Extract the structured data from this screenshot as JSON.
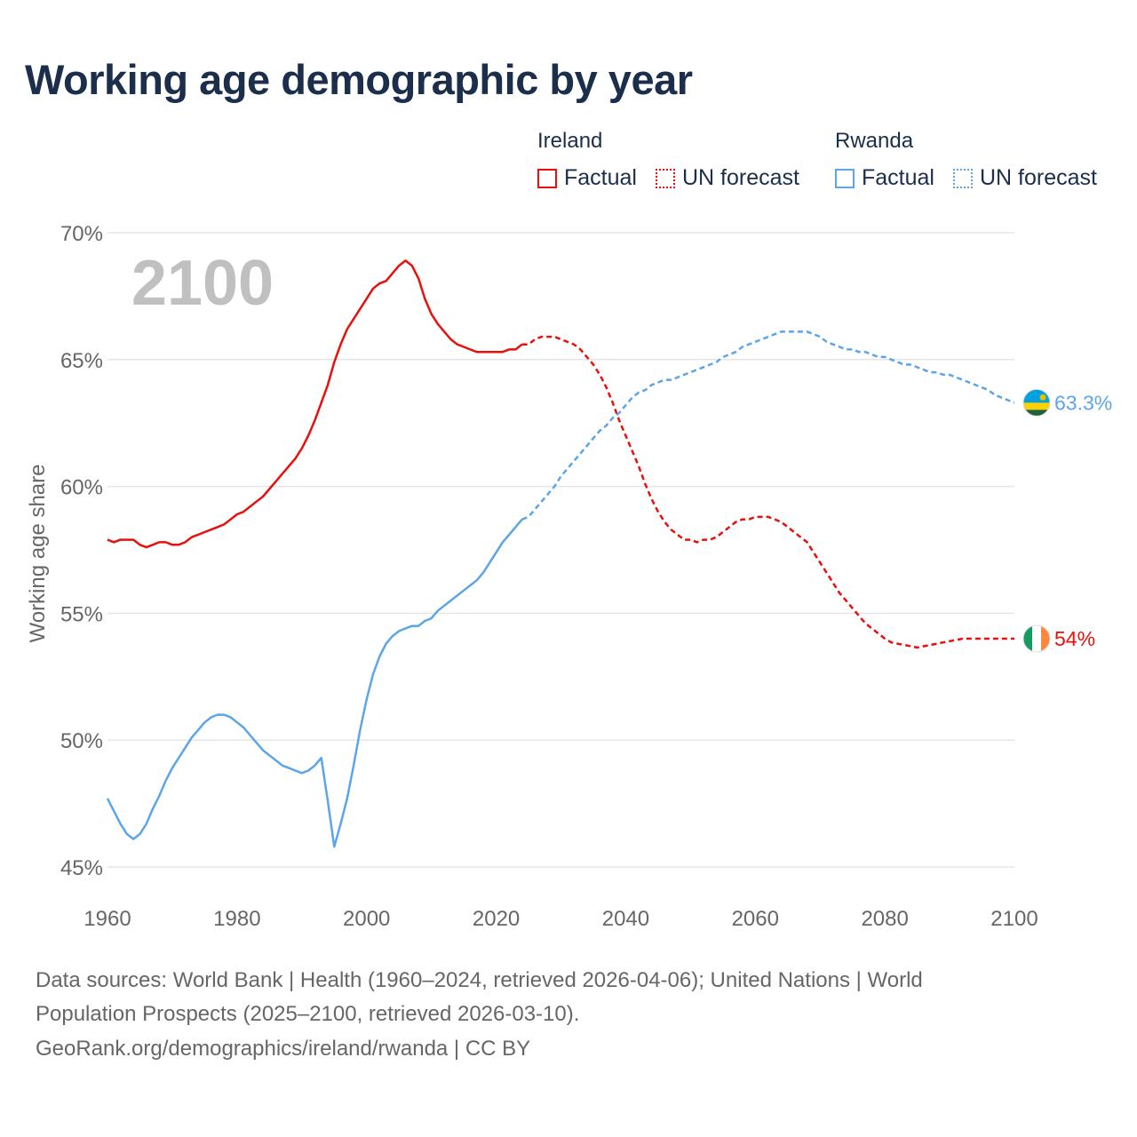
{
  "title": "Working age demographic by year",
  "legend": {
    "groups": [
      {
        "name": "Ireland",
        "color": "#e8100c",
        "items": [
          {
            "label": "Factual",
            "style": "solid"
          },
          {
            "label": "UN forecast",
            "style": "dotted"
          }
        ]
      },
      {
        "name": "Rwanda",
        "color": "#5ba5e8",
        "items": [
          {
            "label": "Factual",
            "style": "solid"
          },
          {
            "label": "UN forecast",
            "style": "dotted"
          }
        ]
      }
    ]
  },
  "footer": {
    "line1": "Data sources: World Bank | Health (1960–2024, retrieved 2026-04-06); United Nations | World",
    "line2": "Population Prospects (2025–2100, retrieved 2026-03-10).",
    "line3": "GeoRank.org/demographics/ireland/rwanda | CC BY"
  },
  "chart_data": {
    "type": "line",
    "year_label": "2100",
    "ylabel": "Working age share",
    "xlim": [
      1960,
      2100
    ],
    "ylim": [
      45,
      70
    ],
    "xticks": [
      1960,
      1980,
      2000,
      2020,
      2040,
      2060,
      2080,
      2100
    ],
    "yticks": [
      45,
      50,
      55,
      60,
      65,
      70
    ],
    "ytick_labels": [
      "45%",
      "50%",
      "55%",
      "60%",
      "65%",
      "70%"
    ],
    "forecast_start": 2024,
    "series": [
      {
        "name": "Ireland",
        "color": "#e8100c",
        "end_label": "54%",
        "flag": "ireland-flag",
        "points": [
          [
            1960,
            57.9
          ],
          [
            1961,
            57.8
          ],
          [
            1962,
            57.9
          ],
          [
            1963,
            57.9
          ],
          [
            1964,
            57.9
          ],
          [
            1965,
            57.7
          ],
          [
            1966,
            57.6
          ],
          [
            1967,
            57.7
          ],
          [
            1968,
            57.8
          ],
          [
            1969,
            57.8
          ],
          [
            1970,
            57.7
          ],
          [
            1971,
            57.7
          ],
          [
            1972,
            57.8
          ],
          [
            1973,
            58.0
          ],
          [
            1974,
            58.1
          ],
          [
            1975,
            58.2
          ],
          [
            1976,
            58.3
          ],
          [
            1977,
            58.4
          ],
          [
            1978,
            58.5
          ],
          [
            1979,
            58.7
          ],
          [
            1980,
            58.9
          ],
          [
            1981,
            59.0
          ],
          [
            1982,
            59.2
          ],
          [
            1983,
            59.4
          ],
          [
            1984,
            59.6
          ],
          [
            1985,
            59.9
          ],
          [
            1986,
            60.2
          ],
          [
            1987,
            60.5
          ],
          [
            1988,
            60.8
          ],
          [
            1989,
            61.1
          ],
          [
            1990,
            61.5
          ],
          [
            1991,
            62.0
          ],
          [
            1992,
            62.6
          ],
          [
            1993,
            63.3
          ],
          [
            1994,
            64.0
          ],
          [
            1995,
            64.9
          ],
          [
            1996,
            65.6
          ],
          [
            1997,
            66.2
          ],
          [
            1998,
            66.6
          ],
          [
            1999,
            67.0
          ],
          [
            2000,
            67.4
          ],
          [
            2001,
            67.8
          ],
          [
            2002,
            68.0
          ],
          [
            2003,
            68.1
          ],
          [
            2004,
            68.4
          ],
          [
            2005,
            68.7
          ],
          [
            2006,
            68.9
          ],
          [
            2007,
            68.7
          ],
          [
            2008,
            68.2
          ],
          [
            2009,
            67.4
          ],
          [
            2010,
            66.8
          ],
          [
            2011,
            66.4
          ],
          [
            2012,
            66.1
          ],
          [
            2013,
            65.8
          ],
          [
            2014,
            65.6
          ],
          [
            2015,
            65.5
          ],
          [
            2016,
            65.4
          ],
          [
            2017,
            65.3
          ],
          [
            2018,
            65.3
          ],
          [
            2019,
            65.3
          ],
          [
            2020,
            65.3
          ],
          [
            2021,
            65.3
          ],
          [
            2022,
            65.4
          ],
          [
            2023,
            65.4
          ],
          [
            2024,
            65.6
          ],
          [
            2025,
            65.6
          ],
          [
            2026,
            65.8
          ],
          [
            2027,
            65.9
          ],
          [
            2028,
            65.9
          ],
          [
            2029,
            65.9
          ],
          [
            2030,
            65.8
          ],
          [
            2031,
            65.7
          ],
          [
            2032,
            65.6
          ],
          [
            2033,
            65.4
          ],
          [
            2034,
            65.1
          ],
          [
            2035,
            64.8
          ],
          [
            2036,
            64.4
          ],
          [
            2037,
            63.9
          ],
          [
            2038,
            63.3
          ],
          [
            2039,
            62.6
          ],
          [
            2040,
            62.0
          ],
          [
            2041,
            61.4
          ],
          [
            2042,
            60.8
          ],
          [
            2043,
            60.1
          ],
          [
            2044,
            59.5
          ],
          [
            2045,
            59.0
          ],
          [
            2046,
            58.6
          ],
          [
            2047,
            58.3
          ],
          [
            2048,
            58.1
          ],
          [
            2049,
            57.9
          ],
          [
            2050,
            57.9
          ],
          [
            2051,
            57.8
          ],
          [
            2052,
            57.9
          ],
          [
            2053,
            57.9
          ],
          [
            2054,
            58.0
          ],
          [
            2055,
            58.2
          ],
          [
            2056,
            58.4
          ],
          [
            2057,
            58.6
          ],
          [
            2058,
            58.7
          ],
          [
            2059,
            58.7
          ],
          [
            2060,
            58.8
          ],
          [
            2061,
            58.8
          ],
          [
            2062,
            58.8
          ],
          [
            2063,
            58.7
          ],
          [
            2064,
            58.6
          ],
          [
            2065,
            58.4
          ],
          [
            2066,
            58.2
          ],
          [
            2067,
            58.0
          ],
          [
            2068,
            57.8
          ],
          [
            2069,
            57.4
          ],
          [
            2070,
            57.0
          ],
          [
            2071,
            56.6
          ],
          [
            2072,
            56.2
          ],
          [
            2073,
            55.8
          ],
          [
            2074,
            55.5
          ],
          [
            2075,
            55.2
          ],
          [
            2076,
            54.9
          ],
          [
            2077,
            54.6
          ],
          [
            2078,
            54.4
          ],
          [
            2079,
            54.2
          ],
          [
            2080,
            54.0
          ],
          [
            2081,
            53.85
          ],
          [
            2082,
            53.8
          ],
          [
            2083,
            53.75
          ],
          [
            2084,
            53.7
          ],
          [
            2085,
            53.65
          ],
          [
            2086,
            53.7
          ],
          [
            2087,
            53.75
          ],
          [
            2088,
            53.8
          ],
          [
            2089,
            53.85
          ],
          [
            2090,
            53.9
          ],
          [
            2091,
            53.95
          ],
          [
            2092,
            54.0
          ],
          [
            2093,
            54.0
          ],
          [
            2094,
            54.0
          ],
          [
            2095,
            54.0
          ],
          [
            2096,
            54.0
          ],
          [
            2097,
            54.0
          ],
          [
            2098,
            54.0
          ],
          [
            2099,
            54.0
          ],
          [
            2100,
            54.0
          ]
        ]
      },
      {
        "name": "Rwanda",
        "color": "#5ba5e8",
        "end_label": "63.3%",
        "flag": "rwanda-flag",
        "points": [
          [
            1960,
            47.7
          ],
          [
            1961,
            47.2
          ],
          [
            1962,
            46.7
          ],
          [
            1963,
            46.3
          ],
          [
            1964,
            46.1
          ],
          [
            1965,
            46.3
          ],
          [
            1966,
            46.7
          ],
          [
            1967,
            47.3
          ],
          [
            1968,
            47.8
          ],
          [
            1969,
            48.4
          ],
          [
            1970,
            48.9
          ],
          [
            1971,
            49.3
          ],
          [
            1972,
            49.7
          ],
          [
            1973,
            50.1
          ],
          [
            1974,
            50.4
          ],
          [
            1975,
            50.7
          ],
          [
            1976,
            50.9
          ],
          [
            1977,
            51.0
          ],
          [
            1978,
            51.0
          ],
          [
            1979,
            50.9
          ],
          [
            1980,
            50.7
          ],
          [
            1981,
            50.5
          ],
          [
            1982,
            50.2
          ],
          [
            1983,
            49.9
          ],
          [
            1984,
            49.6
          ],
          [
            1985,
            49.4
          ],
          [
            1986,
            49.2
          ],
          [
            1987,
            49.0
          ],
          [
            1988,
            48.9
          ],
          [
            1989,
            48.8
          ],
          [
            1990,
            48.7
          ],
          [
            1991,
            48.8
          ],
          [
            1992,
            49.0
          ],
          [
            1993,
            49.3
          ],
          [
            1994,
            47.6
          ],
          [
            1995,
            45.8
          ],
          [
            1996,
            46.7
          ],
          [
            1997,
            47.7
          ],
          [
            1998,
            49.0
          ],
          [
            1999,
            50.4
          ],
          [
            2000,
            51.6
          ],
          [
            2001,
            52.6
          ],
          [
            2002,
            53.3
          ],
          [
            2003,
            53.8
          ],
          [
            2004,
            54.1
          ],
          [
            2005,
            54.3
          ],
          [
            2006,
            54.4
          ],
          [
            2007,
            54.5
          ],
          [
            2008,
            54.5
          ],
          [
            2009,
            54.7
          ],
          [
            2010,
            54.8
          ],
          [
            2011,
            55.1
          ],
          [
            2012,
            55.3
          ],
          [
            2013,
            55.5
          ],
          [
            2014,
            55.7
          ],
          [
            2015,
            55.9
          ],
          [
            2016,
            56.1
          ],
          [
            2017,
            56.3
          ],
          [
            2018,
            56.6
          ],
          [
            2019,
            57.0
          ],
          [
            2020,
            57.4
          ],
          [
            2021,
            57.8
          ],
          [
            2022,
            58.1
          ],
          [
            2023,
            58.4
          ],
          [
            2024,
            58.7
          ],
          [
            2025,
            58.8
          ],
          [
            2026,
            59.1
          ],
          [
            2027,
            59.4
          ],
          [
            2028,
            59.7
          ],
          [
            2029,
            60.0
          ],
          [
            2030,
            60.4
          ],
          [
            2031,
            60.7
          ],
          [
            2032,
            61.0
          ],
          [
            2033,
            61.3
          ],
          [
            2034,
            61.6
          ],
          [
            2035,
            61.9
          ],
          [
            2036,
            62.2
          ],
          [
            2037,
            62.4
          ],
          [
            2038,
            62.7
          ],
          [
            2039,
            62.9
          ],
          [
            2040,
            63.2
          ],
          [
            2041,
            63.5
          ],
          [
            2042,
            63.7
          ],
          [
            2043,
            63.8
          ],
          [
            2044,
            64.0
          ],
          [
            2045,
            64.1
          ],
          [
            2046,
            64.2
          ],
          [
            2047,
            64.2
          ],
          [
            2048,
            64.3
          ],
          [
            2049,
            64.4
          ],
          [
            2050,
            64.5
          ],
          [
            2051,
            64.6
          ],
          [
            2052,
            64.7
          ],
          [
            2053,
            64.8
          ],
          [
            2054,
            64.9
          ],
          [
            2055,
            65.1
          ],
          [
            2056,
            65.2
          ],
          [
            2057,
            65.3
          ],
          [
            2058,
            65.5
          ],
          [
            2059,
            65.6
          ],
          [
            2060,
            65.7
          ],
          [
            2061,
            65.8
          ],
          [
            2062,
            65.9
          ],
          [
            2063,
            66.0
          ],
          [
            2064,
            66.1
          ],
          [
            2065,
            66.1
          ],
          [
            2066,
            66.1
          ],
          [
            2067,
            66.1
          ],
          [
            2068,
            66.1
          ],
          [
            2069,
            66.0
          ],
          [
            2070,
            65.9
          ],
          [
            2071,
            65.7
          ],
          [
            2072,
            65.6
          ],
          [
            2073,
            65.5
          ],
          [
            2074,
            65.4
          ],
          [
            2075,
            65.4
          ],
          [
            2076,
            65.3
          ],
          [
            2077,
            65.3
          ],
          [
            2078,
            65.2
          ],
          [
            2079,
            65.1
          ],
          [
            2080,
            65.1
          ],
          [
            2081,
            65.0
          ],
          [
            2082,
            64.9
          ],
          [
            2083,
            64.8
          ],
          [
            2084,
            64.8
          ],
          [
            2085,
            64.7
          ],
          [
            2086,
            64.6
          ],
          [
            2087,
            64.5
          ],
          [
            2088,
            64.5
          ],
          [
            2089,
            64.4
          ],
          [
            2090,
            64.4
          ],
          [
            2091,
            64.3
          ],
          [
            2092,
            64.2
          ],
          [
            2093,
            64.1
          ],
          [
            2094,
            64.0
          ],
          [
            2095,
            63.9
          ],
          [
            2096,
            63.8
          ],
          [
            2097,
            63.6
          ],
          [
            2098,
            63.5
          ],
          [
            2099,
            63.4
          ],
          [
            2100,
            63.3
          ]
        ]
      }
    ]
  }
}
